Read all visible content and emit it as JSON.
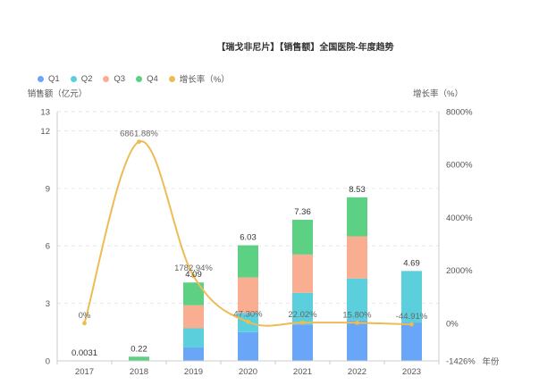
{
  "chart_data": {
    "type": "bar",
    "title": "【瑞戈非尼片】【销售额】全国医院-年度趋势",
    "categories": [
      "2017",
      "2018",
      "2019",
      "2020",
      "2021",
      "2022",
      "2023"
    ],
    "xlabel": "年份",
    "ylabel": "销售额（亿元）",
    "y2label": "增长率（%）",
    "ylim": [
      0,
      13
    ],
    "y_ticks": [
      "0",
      "3",
      "6",
      "9",
      "12",
      "13"
    ],
    "y2lim": [
      -1426,
      8000
    ],
    "y2_ticks": [
      "-1426%",
      "0%",
      "2000%",
      "4000%",
      "6000%",
      "8000%"
    ],
    "stacked": true,
    "series": [
      {
        "name": "Q1",
        "color": "#6aa6f8",
        "values": [
          0.0031,
          0,
          0.7,
          1.5,
          1.9,
          2.1,
          2.0
        ]
      },
      {
        "name": "Q2",
        "color": "#5ccfdc",
        "values": [
          0,
          0,
          1.0,
          1.0,
          1.65,
          2.2,
          2.69
        ]
      },
      {
        "name": "Q3",
        "color": "#f9ae92",
        "values": [
          0,
          0,
          1.2,
          1.85,
          2.0,
          2.2,
          0
        ]
      },
      {
        "name": "Q4",
        "color": "#5cd184",
        "values": [
          0,
          0.22,
          1.19,
          1.68,
          1.81,
          2.03,
          0
        ]
      }
    ],
    "totals": [
      0.0031,
      0.22,
      4.09,
      6.03,
      7.36,
      8.53,
      4.69
    ],
    "total_labels": [
      "0.0031",
      "0.22",
      "4.09",
      "6.03",
      "7.36",
      "8.53",
      "4.69"
    ],
    "line": {
      "name": "增长率（%）",
      "color": "#eebb55",
      "values": [
        0,
        6861.88,
        1782.94,
        47.3,
        22.02,
        15.8,
        -44.91
      ],
      "labels": [
        "0%",
        "6861.88%",
        "1782.94%",
        "47.30%",
        "22.02%",
        "15.80%",
        "-44.91%"
      ]
    },
    "legend": [
      "Q1",
      "Q2",
      "Q3",
      "Q4",
      "增长率（%）"
    ],
    "legend_position": "top-left"
  }
}
